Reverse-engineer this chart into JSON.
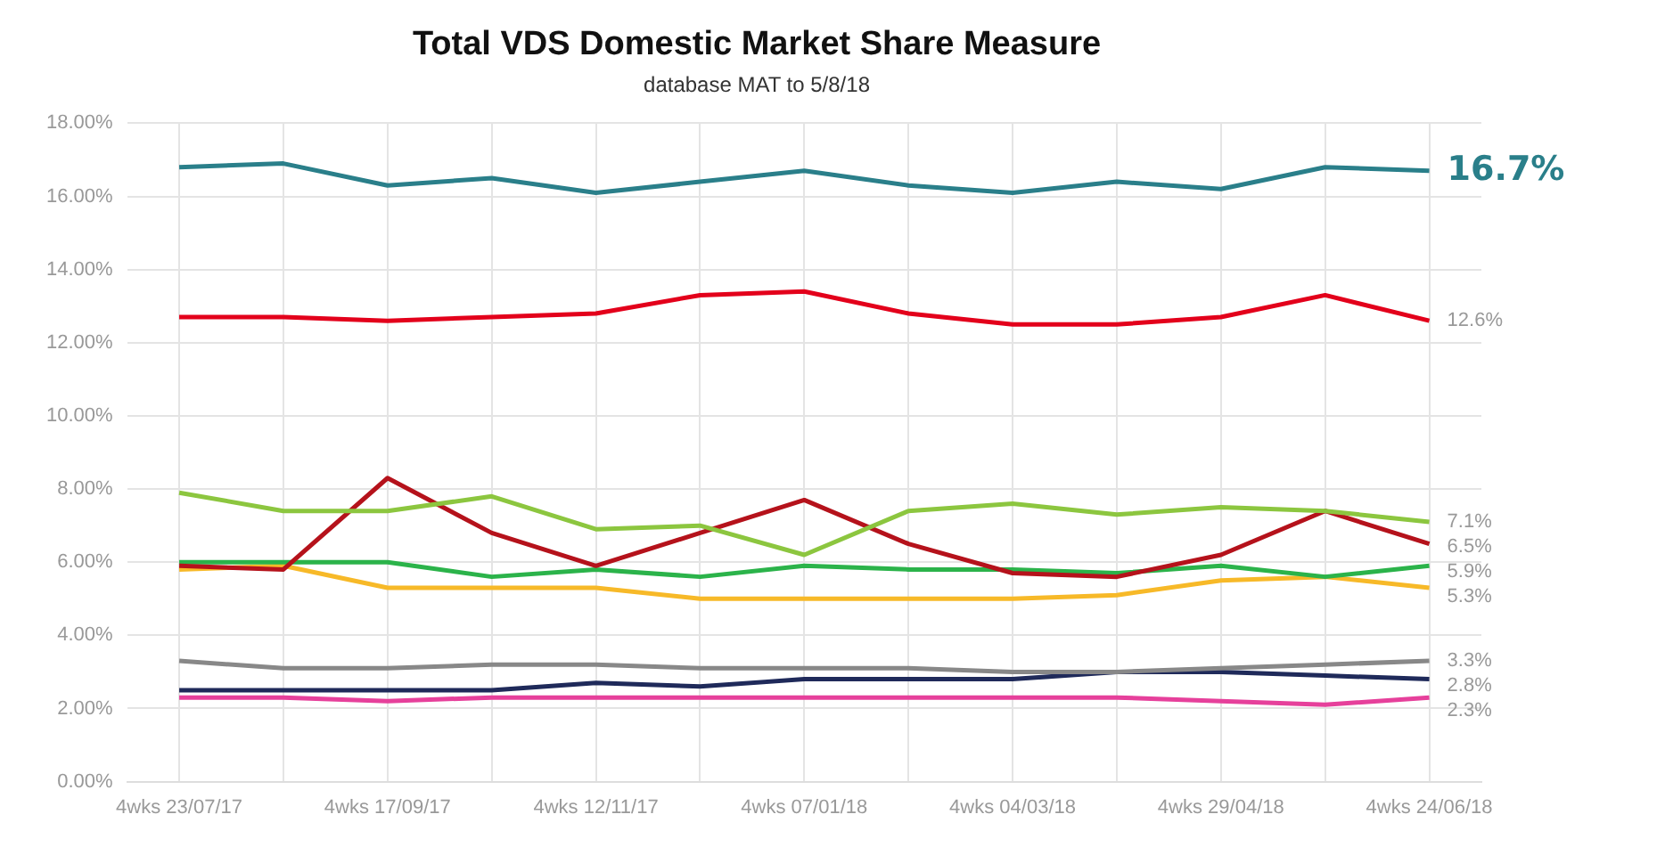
{
  "chart_data": {
    "type": "line",
    "title": "Total VDS Domestic Market Share Measure",
    "subtitle": "database MAT to 5/8/18",
    "categories": [
      "4wks 23/07/17",
      null,
      "4wks 17/09/17",
      null,
      "4wks 12/11/17",
      null,
      "4wks 07/01/18",
      null,
      "4wks 04/03/18",
      null,
      "4wks 29/04/18",
      null,
      "4wks 24/06/18"
    ],
    "series": [
      {
        "color": "#2a7f8a",
        "values": [
          16.8,
          16.9,
          16.3,
          16.5,
          16.1,
          16.4,
          16.7,
          16.3,
          16.1,
          16.4,
          16.2,
          16.8,
          16.7
        ],
        "value_labels": [
          null,
          null,
          null,
          null,
          null,
          null,
          null,
          null,
          null,
          null,
          null,
          null,
          "16.7%"
        ]
      },
      {
        "color": "#e3001b",
        "values": [
          12.7,
          12.7,
          12.6,
          12.7,
          12.8,
          13.3,
          13.4,
          12.8,
          12.5,
          12.5,
          12.7,
          13.3,
          12.6
        ],
        "value_labels": [
          null,
          null,
          null,
          null,
          null,
          null,
          null,
          null,
          null,
          null,
          null,
          null,
          "12.6%"
        ]
      },
      {
        "color": "#8cc63f",
        "values": [
          7.9,
          7.4,
          7.4,
          7.8,
          6.9,
          7.0,
          6.2,
          7.4,
          7.6,
          7.3,
          7.5,
          7.4,
          7.1
        ],
        "value_labels": [
          null,
          null,
          null,
          null,
          null,
          null,
          null,
          null,
          null,
          null,
          null,
          null,
          "7.1%"
        ]
      },
      {
        "color": "#b5121b",
        "values": [
          5.9,
          5.8,
          8.3,
          6.8,
          5.9,
          6.8,
          7.7,
          6.5,
          5.7,
          5.6,
          6.2,
          7.4,
          6.5
        ],
        "value_labels": [
          null,
          null,
          null,
          null,
          null,
          null,
          null,
          null,
          null,
          null,
          null,
          null,
          "6.5%"
        ]
      },
      {
        "color": "#2bb34a",
        "values": [
          6.0,
          6.0,
          6.0,
          5.6,
          5.8,
          5.6,
          5.9,
          5.8,
          5.8,
          5.7,
          5.9,
          5.6,
          5.9
        ],
        "value_labels": [
          null,
          null,
          null,
          null,
          null,
          null,
          null,
          null,
          null,
          null,
          null,
          null,
          "5.9%"
        ]
      },
      {
        "color": "#f7b928",
        "values": [
          5.8,
          5.9,
          5.3,
          5.3,
          5.3,
          5.0,
          5.0,
          5.0,
          5.0,
          5.1,
          5.5,
          5.6,
          5.3
        ],
        "value_labels": [
          null,
          null,
          null,
          null,
          null,
          null,
          null,
          null,
          null,
          null,
          null,
          null,
          "5.3%"
        ]
      },
      {
        "color": "#888888",
        "values": [
          3.3,
          3.1,
          3.1,
          3.2,
          3.2,
          3.1,
          3.1,
          3.1,
          3.0,
          3.0,
          3.1,
          3.2,
          3.3
        ],
        "value_labels": [
          null,
          null,
          null,
          null,
          null,
          null,
          null,
          null,
          null,
          null,
          null,
          null,
          "3.3%"
        ]
      },
      {
        "color": "#1f2a5a",
        "values": [
          2.5,
          2.5,
          2.5,
          2.5,
          2.7,
          2.6,
          2.8,
          2.8,
          2.8,
          3.0,
          3.0,
          2.9,
          2.8
        ],
        "value_labels": [
          null,
          null,
          null,
          null,
          null,
          null,
          null,
          null,
          null,
          null,
          null,
          null,
          "2.8%"
        ]
      },
      {
        "color": "#e6409b",
        "values": [
          2.3,
          2.3,
          2.2,
          2.3,
          2.3,
          2.3,
          2.3,
          2.3,
          2.3,
          2.3,
          2.2,
          2.1,
          2.3
        ],
        "value_labels": [
          null,
          null,
          null,
          null,
          null,
          null,
          null,
          null,
          null,
          null,
          null,
          null,
          "2.3%"
        ]
      }
    ],
    "ylim": [
      0,
      18
    ],
    "yticks": [
      {
        "value": 0,
        "label": "0.00%"
      },
      {
        "value": 2,
        "label": "2.00%"
      },
      {
        "value": 4,
        "label": "4.00%"
      },
      {
        "value": 6,
        "label": "6.00%"
      },
      {
        "value": 8,
        "label": "8.00%"
      },
      {
        "value": 10,
        "label": "10.00%"
      },
      {
        "value": 12,
        "label": "12.00%"
      },
      {
        "value": 14,
        "label": "14.00%"
      },
      {
        "value": 16,
        "label": "16.00%"
      },
      {
        "value": 18,
        "label": "18.00%"
      }
    ],
    "grid": true,
    "legend": false,
    "marker": "none",
    "line_style": "solid"
  }
}
